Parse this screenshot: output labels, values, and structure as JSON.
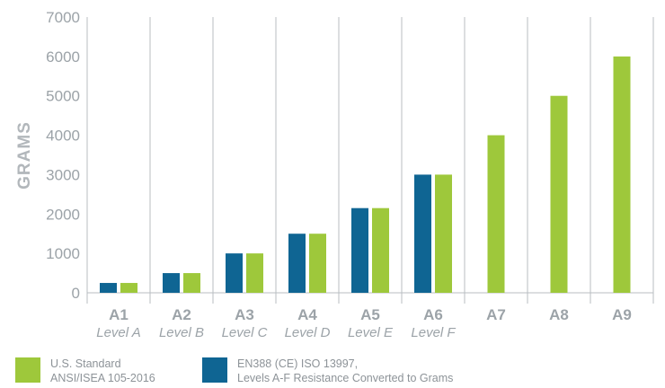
{
  "colors": {
    "us_standard": "#9ec83b",
    "en388": "#0f6593",
    "axis": "#9ca3a8",
    "grid": "#b9bec2"
  },
  "chart_data": {
    "type": "bar",
    "ylabel": "GRAMS",
    "ylim": [
      0,
      7000
    ],
    "yticks": [
      "0",
      "1000",
      "2000",
      "3000",
      "4000",
      "5000",
      "6000",
      "7000"
    ],
    "grid": "vertical category separators",
    "legend_position": "bottom-left",
    "categories": [
      {
        "label": "A1",
        "sublabel": "Level A"
      },
      {
        "label": "A2",
        "sublabel": "Level B"
      },
      {
        "label": "A3",
        "sublabel": "Level C"
      },
      {
        "label": "A4",
        "sublabel": "Level D"
      },
      {
        "label": "A5",
        "sublabel": "Level E"
      },
      {
        "label": "A6",
        "sublabel": "Level F"
      },
      {
        "label": "A7",
        "sublabel": ""
      },
      {
        "label": "A8",
        "sublabel": ""
      },
      {
        "label": "A9",
        "sublabel": ""
      }
    ],
    "series": [
      {
        "key": "en388",
        "values": [
          250,
          500,
          1000,
          1500,
          2150,
          3000,
          null,
          null,
          null
        ]
      },
      {
        "key": "us_standard",
        "values": [
          250,
          500,
          1000,
          1500,
          2150,
          3000,
          4000,
          5000,
          6000
        ]
      }
    ]
  },
  "legend": {
    "us_standard": {
      "line1": "U.S. Standard",
      "line2": "ANSI/ISEA 105-2016"
    },
    "en388": {
      "line1": "EN388 (CE) ISO 13997,",
      "line2": "Levels A-F Resistance Converted to Grams"
    }
  }
}
